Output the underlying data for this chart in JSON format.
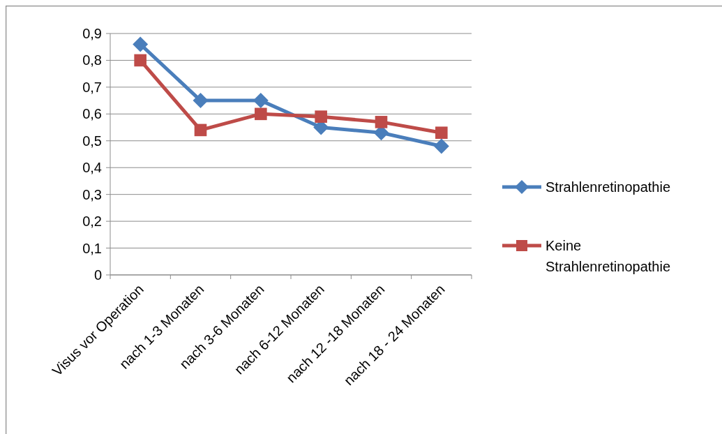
{
  "chart_data": {
    "type": "line",
    "categories": [
      "Visus vor Operation",
      "nach 1-3 Monaten",
      "nach 3-6 Monaten",
      "nach 6-12 Monaten",
      "nach 12 -18 Monaten",
      "nach 18 - 24 Monaten"
    ],
    "series": [
      {
        "name": "Strahlenretinopathie",
        "color": "#4a7ebb",
        "marker": "diamond",
        "values": [
          0.86,
          0.65,
          0.65,
          0.55,
          0.53,
          0.48
        ]
      },
      {
        "name": "Keine Strahlenretinopathie",
        "color": "#be4b48",
        "marker": "square",
        "values": [
          0.8,
          0.54,
          0.6,
          0.59,
          0.57,
          0.53
        ]
      }
    ],
    "ylim": [
      0,
      0.9
    ],
    "yticks": [
      {
        "value": 0,
        "label": "0"
      },
      {
        "value": 0.1,
        "label": "0,1"
      },
      {
        "value": 0.2,
        "label": "0,2"
      },
      {
        "value": 0.3,
        "label": "0,3"
      },
      {
        "value": 0.4,
        "label": "0,4"
      },
      {
        "value": 0.5,
        "label": "0,5"
      },
      {
        "value": 0.6,
        "label": "0,6"
      },
      {
        "value": 0.7,
        "label": "0,7"
      },
      {
        "value": 0.8,
        "label": "0,8"
      },
      {
        "value": 0.9,
        "label": "0,9"
      }
    ],
    "grid": "y",
    "legend": "right"
  }
}
